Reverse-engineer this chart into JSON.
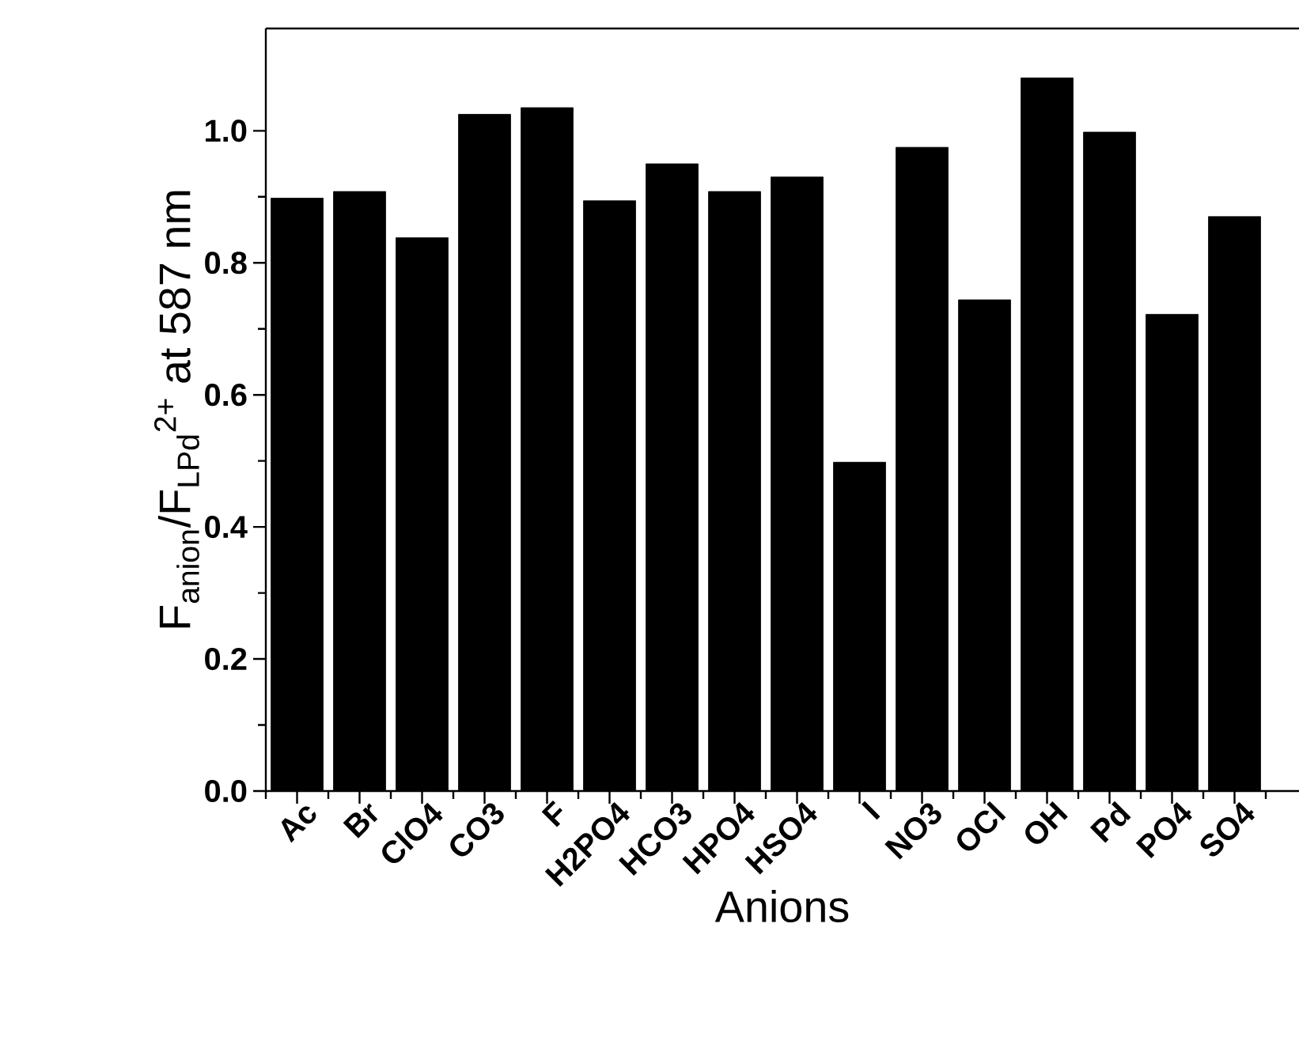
{
  "chart_data": {
    "type": "bar",
    "xlabel": "Anions",
    "ylabel": "F$_{anion}$/F$_{LPd}$$^{2+}$ at 587 nm",
    "categories": [
      "Ac",
      "Br",
      "ClO4",
      "CO3",
      "F",
      "H2PO4",
      "HCO3",
      "HPO4",
      "HSO4",
      "I",
      "NO3",
      "OCl",
      "OH",
      "Pd",
      "PO4",
      "SO4"
    ],
    "values": [
      0.898,
      0.908,
      0.838,
      1.025,
      1.035,
      0.894,
      0.95,
      0.908,
      0.93,
      0.498,
      0.975,
      0.744,
      1.08,
      0.998,
      0.722,
      0.87
    ],
    "color": "#000000",
    "ylim": [
      0,
      1.155
    ],
    "yticks": [
      {
        "value": 0,
        "label": "0.0"
      },
      {
        "value": 0.2,
        "label": "0.2"
      },
      {
        "value": 0.4,
        "label": "0.4"
      },
      {
        "value": 0.6,
        "label": "0.6"
      },
      {
        "value": 0.8,
        "label": "0.8"
      },
      {
        "value": 1.0,
        "label": "1.0"
      }
    ],
    "grid": false
  }
}
